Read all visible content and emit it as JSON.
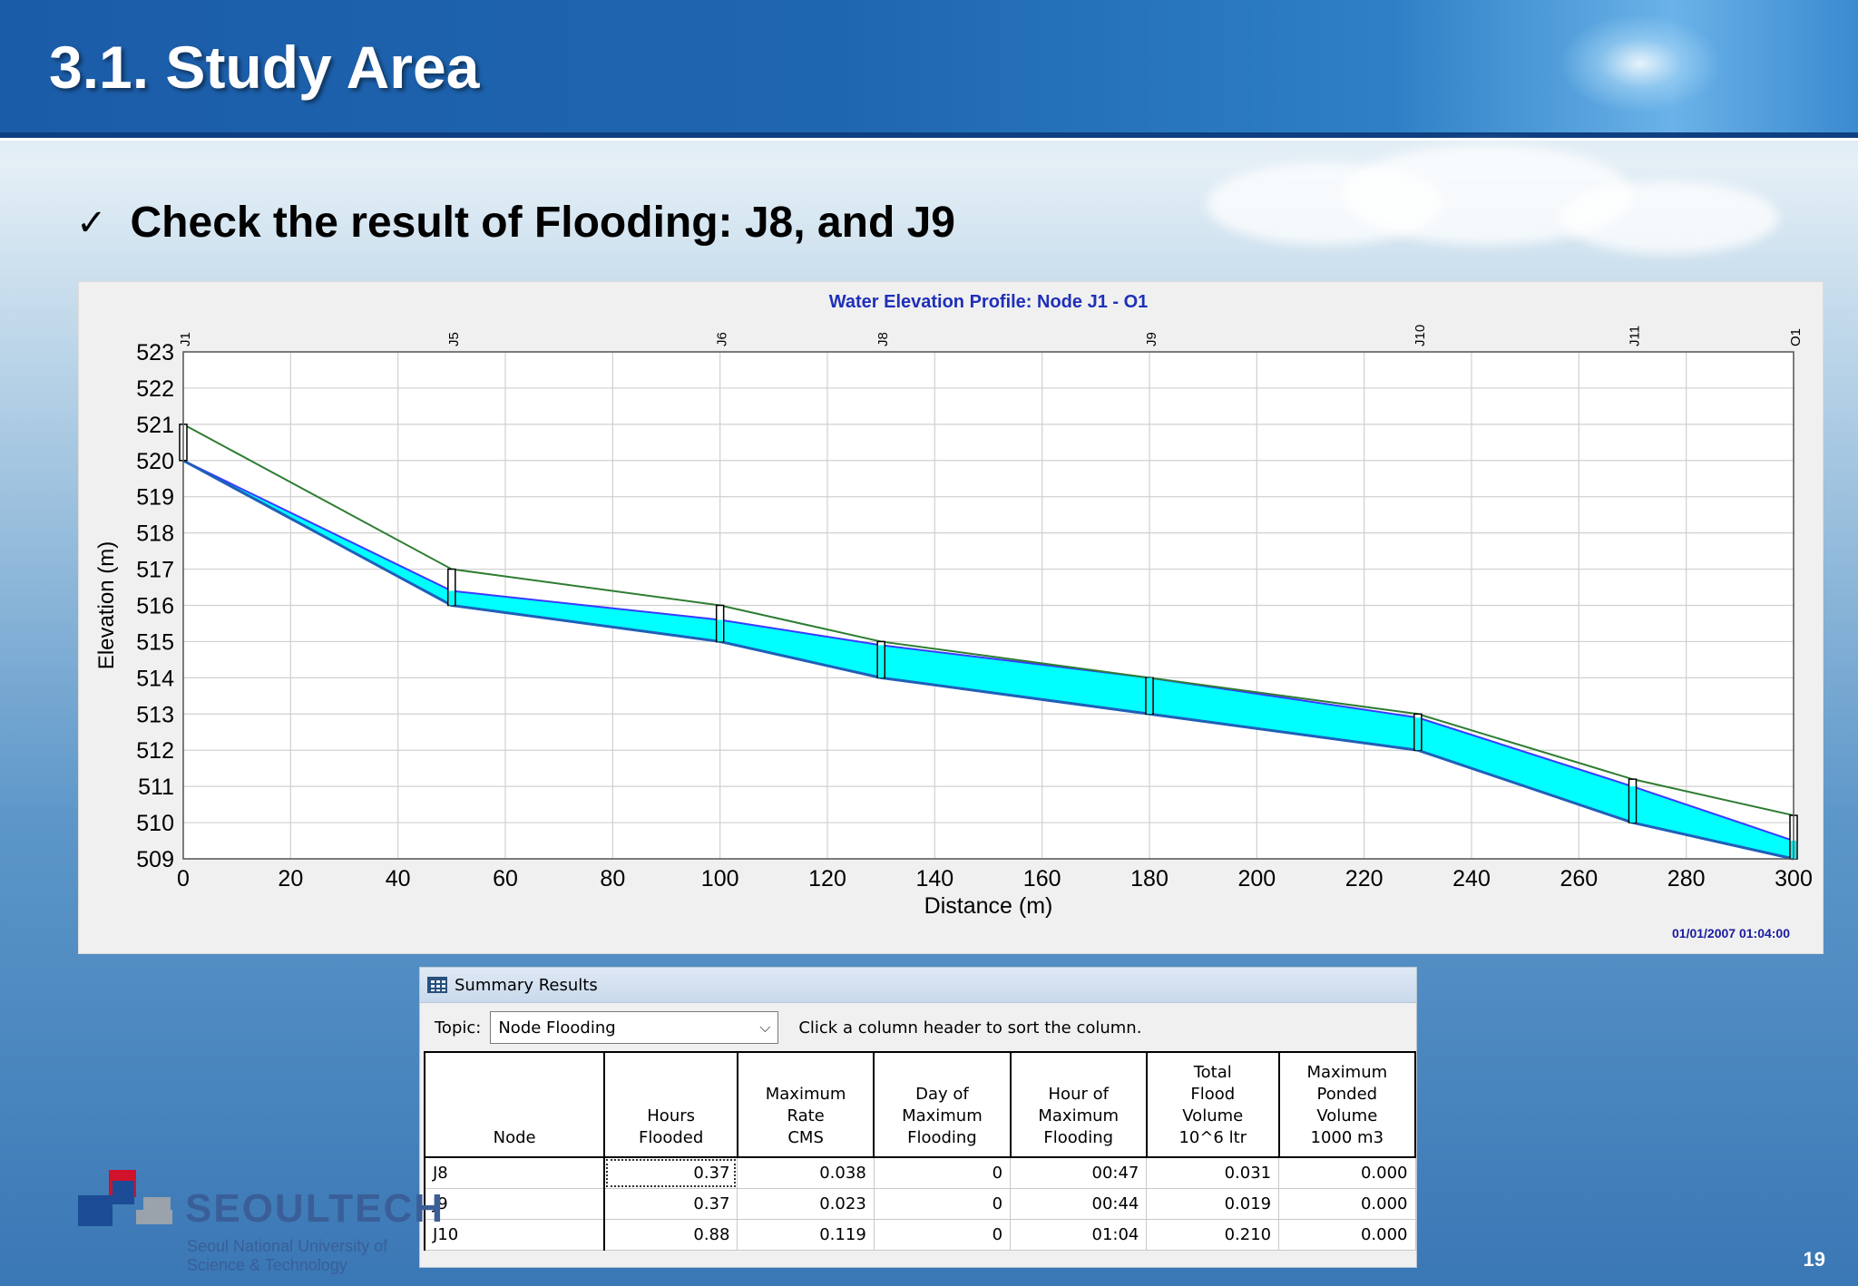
{
  "slide": {
    "title": "3.1. Study Area",
    "bullet": "Check the result of Flooding: J8, and J9",
    "page_number": "19"
  },
  "chart_data": {
    "type": "area",
    "title": "Water Elevation Profile: Node J1 - O1",
    "xlabel": "Distance (m)",
    "ylabel": "Elevation (m)",
    "xlim": [
      0,
      300
    ],
    "ylim": [
      509,
      523
    ],
    "x_ticks": [
      0,
      20,
      40,
      60,
      80,
      100,
      120,
      140,
      160,
      180,
      200,
      220,
      240,
      260,
      280,
      300
    ],
    "y_ticks": [
      509,
      510,
      511,
      512,
      513,
      514,
      515,
      516,
      517,
      518,
      519,
      520,
      521,
      522,
      523
    ],
    "grid": true,
    "timestamp": "01/01/2007 01:04:00",
    "nodes": [
      {
        "name": "J1",
        "x": 0,
        "invert": 520.0,
        "ground": 521.0,
        "water": 520.0
      },
      {
        "name": "J5",
        "x": 50,
        "invert": 516.0,
        "ground": 517.0,
        "water": 516.4
      },
      {
        "name": "J6",
        "x": 100,
        "invert": 515.0,
        "ground": 516.0,
        "water": 515.6
      },
      {
        "name": "J8",
        "x": 130,
        "invert": 514.0,
        "ground": 515.0,
        "water": 514.9
      },
      {
        "name": "J9",
        "x": 180,
        "invert": 513.0,
        "ground": 514.0,
        "water": 514.0
      },
      {
        "name": "J10",
        "x": 230,
        "invert": 512.0,
        "ground": 513.0,
        "water": 512.9
      },
      {
        "name": "J11",
        "x": 270,
        "invert": 510.0,
        "ground": 511.2,
        "water": 511.0
      },
      {
        "name": "O1",
        "x": 300,
        "invert": 509.0,
        "ground": 510.2,
        "water": 509.5
      }
    ],
    "colors": {
      "water": "#00ffff",
      "water_line": "#3a3aff",
      "ground": "#2e7d32",
      "invert": "#1f5fb8",
      "title": "#1f2fb8"
    }
  },
  "summary": {
    "window_title": "Summary Results",
    "topic_label": "Topic:",
    "topic_value": "Node Flooding",
    "hint": "Click a column header to sort the column.",
    "columns": [
      [
        "Node"
      ],
      [
        "Hours",
        "Flooded"
      ],
      [
        "Maximum",
        "Rate",
        "CMS"
      ],
      [
        "Day of",
        "Maximum",
        "Flooding"
      ],
      [
        "Hour of",
        "Maximum",
        "Flooding"
      ],
      [
        "Total",
        "Flood",
        "Volume",
        "10^6 ltr"
      ],
      [
        "Maximum",
        "Ponded",
        "Volume",
        "1000 m3"
      ]
    ],
    "rows": [
      [
        "J8",
        "0.37",
        "0.038",
        "0",
        "00:47",
        "0.031",
        "0.000"
      ],
      [
        "J9",
        "0.37",
        "0.023",
        "0",
        "00:44",
        "0.019",
        "0.000"
      ],
      [
        "J10",
        "0.88",
        "0.119",
        "0",
        "01:04",
        "0.210",
        "0.000"
      ]
    ]
  },
  "logo": {
    "name": "SEOULTECH",
    "sub1": "Seoul National University of",
    "sub2": "Science & Technology"
  }
}
